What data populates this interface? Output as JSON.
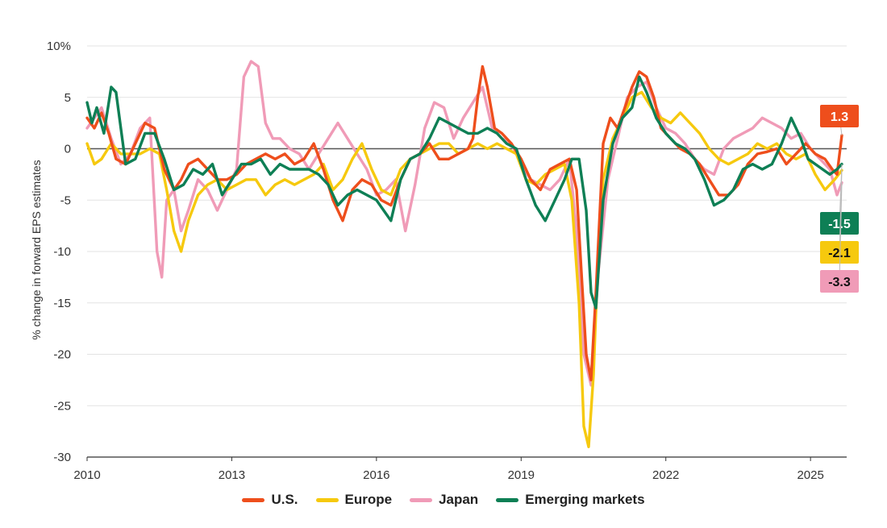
{
  "chart_data": {
    "type": "line",
    "title": "",
    "xlabel": "",
    "ylabel": "% change in forward EPS estimates",
    "xlim": [
      2010,
      2025.75
    ],
    "ylim": [
      -30,
      10
    ],
    "x_ticks": [
      2010,
      2013,
      2016,
      2019,
      2022,
      2025
    ],
    "x_tick_labels": [
      "2010",
      "2013",
      "2016",
      "2019",
      "2022",
      "2025"
    ],
    "y_ticks": [
      10,
      5,
      0,
      -5,
      -10,
      -15,
      -20,
      -25,
      -30
    ],
    "y_tick_labels": [
      "10%",
      "5",
      "0",
      "-5",
      "-10",
      "-15",
      "-20",
      "-25",
      "-30"
    ],
    "grid": "horizontal",
    "zero_line": true,
    "legend_position": "bottom",
    "series": [
      {
        "name": "U.S.",
        "color": "#ee4e1c",
        "end_label": "1.3",
        "x": [
          2010.0,
          2010.15,
          2010.3,
          2010.45,
          2010.6,
          2010.8,
          2011.0,
          2011.2,
          2011.4,
          2011.6,
          2011.8,
          2011.95,
          2012.1,
          2012.3,
          2012.5,
          2012.7,
          2012.9,
          2013.1,
          2013.3,
          2013.5,
          2013.7,
          2013.9,
          2014.1,
          2014.3,
          2014.5,
          2014.7,
          2014.9,
          2015.1,
          2015.3,
          2015.5,
          2015.7,
          2015.9,
          2016.1,
          2016.3,
          2016.5,
          2016.7,
          2016.9,
          2017.1,
          2017.3,
          2017.5,
          2017.7,
          2017.9,
          2018.0,
          2018.1,
          2018.2,
          2018.3,
          2018.45,
          2018.6,
          2018.8,
          2019.0,
          2019.2,
          2019.4,
          2019.6,
          2019.8,
          2020.0,
          2020.15,
          2020.25,
          2020.35,
          2020.45,
          2020.55,
          2020.7,
          2020.85,
          2021.0,
          2021.15,
          2021.3,
          2021.45,
          2021.6,
          2021.75,
          2021.9,
          2022.1,
          2022.3,
          2022.5,
          2022.7,
          2022.9,
          2023.1,
          2023.3,
          2023.5,
          2023.7,
          2023.9,
          2024.1,
          2024.3,
          2024.5,
          2024.7,
          2024.9,
          2025.1,
          2025.3,
          2025.45,
          2025.55,
          2025.65
        ],
        "y": [
          3.0,
          2.0,
          3.5,
          1.5,
          -1.0,
          -1.5,
          0.5,
          2.5,
          2.0,
          -2.0,
          -4.0,
          -3.0,
          -1.5,
          -1.0,
          -2.0,
          -3.0,
          -3.0,
          -2.5,
          -1.5,
          -1.0,
          -0.5,
          -1.0,
          -0.5,
          -1.5,
          -1.0,
          0.5,
          -2.0,
          -5.0,
          -7.0,
          -4.0,
          -3.0,
          -3.5,
          -5.0,
          -5.5,
          -3.0,
          -1.0,
          -0.5,
          0.5,
          -1.0,
          -1.0,
          -0.5,
          0.0,
          1.0,
          5.0,
          8.0,
          6.0,
          2.0,
          1.5,
          0.5,
          -1.0,
          -3.0,
          -4.0,
          -2.0,
          -1.5,
          -1.0,
          -4.0,
          -12.0,
          -20.0,
          -22.5,
          -14.0,
          0.5,
          3.0,
          2.0,
          4.0,
          6.0,
          7.5,
          7.0,
          5.0,
          2.0,
          1.0,
          0.0,
          -0.5,
          -1.5,
          -3.0,
          -4.5,
          -4.5,
          -3.5,
          -1.5,
          -0.5,
          -0.3,
          0.0,
          -1.5,
          -0.5,
          0.5,
          -0.5,
          -1.0,
          -2.0,
          -2.5,
          1.3
        ]
      },
      {
        "name": "Europe",
        "color": "#f6c90e",
        "end_label": "-2.1",
        "x": [
          2010.0,
          2010.15,
          2010.3,
          2010.5,
          2010.7,
          2010.9,
          2011.1,
          2011.3,
          2011.5,
          2011.65,
          2011.8,
          2011.95,
          2012.1,
          2012.3,
          2012.5,
          2012.7,
          2012.9,
          2013.1,
          2013.3,
          2013.5,
          2013.7,
          2013.9,
          2014.1,
          2014.3,
          2014.5,
          2014.7,
          2014.9,
          2015.1,
          2015.3,
          2015.5,
          2015.7,
          2015.9,
          2016.1,
          2016.3,
          2016.5,
          2016.7,
          2016.9,
          2017.1,
          2017.3,
          2017.5,
          2017.7,
          2017.9,
          2018.1,
          2018.3,
          2018.5,
          2018.7,
          2018.9,
          2019.1,
          2019.3,
          2019.5,
          2019.7,
          2019.9,
          2020.05,
          2020.2,
          2020.3,
          2020.4,
          2020.5,
          2020.6,
          2020.7,
          2020.9,
          2021.1,
          2021.3,
          2021.5,
          2021.7,
          2021.9,
          2022.1,
          2022.3,
          2022.5,
          2022.7,
          2022.9,
          2023.1,
          2023.3,
          2023.5,
          2023.7,
          2023.9,
          2024.1,
          2024.3,
          2024.5,
          2024.7,
          2024.9,
          2025.1,
          2025.3,
          2025.5,
          2025.65
        ],
        "y": [
          0.5,
          -1.5,
          -1.0,
          0.5,
          -0.5,
          -0.5,
          -0.5,
          0.0,
          -0.5,
          -4.0,
          -8.0,
          -10.0,
          -7.0,
          -4.5,
          -3.5,
          -3.0,
          -4.0,
          -3.5,
          -3.0,
          -3.0,
          -4.5,
          -3.5,
          -3.0,
          -3.5,
          -3.0,
          -2.5,
          -1.5,
          -4.0,
          -3.0,
          -1.0,
          0.5,
          -2.0,
          -4.0,
          -4.5,
          -2.0,
          -1.0,
          -0.5,
          0.0,
          0.5,
          0.5,
          -0.5,
          0.0,
          0.5,
          0.0,
          0.5,
          0.0,
          -0.5,
          -3.0,
          -3.5,
          -2.5,
          -2.0,
          -1.5,
          -5.0,
          -15.0,
          -27.0,
          -29.0,
          -22.0,
          -10.0,
          -3.0,
          1.0,
          3.0,
          5.0,
          5.5,
          4.0,
          3.0,
          2.5,
          3.5,
          2.5,
          1.5,
          0.0,
          -1.0,
          -1.5,
          -1.0,
          -0.5,
          0.5,
          0.0,
          0.5,
          -0.5,
          -1.0,
          -0.5,
          -2.5,
          -4.0,
          -3.0,
          -2.1
        ]
      },
      {
        "name": "Japan",
        "color": "#f09bb7",
        "end_label": "-3.3",
        "x": [
          2010.0,
          2010.15,
          2010.3,
          2010.5,
          2010.7,
          2010.9,
          2011.1,
          2011.3,
          2011.45,
          2011.55,
          2011.65,
          2011.8,
          2011.95,
          2012.1,
          2012.3,
          2012.5,
          2012.7,
          2012.9,
          2013.1,
          2013.25,
          2013.4,
          2013.55,
          2013.7,
          2013.85,
          2014.0,
          2014.2,
          2014.4,
          2014.6,
          2014.8,
          2015.0,
          2015.2,
          2015.4,
          2015.6,
          2015.8,
          2016.0,
          2016.2,
          2016.4,
          2016.6,
          2016.8,
          2017.0,
          2017.2,
          2017.4,
          2017.6,
          2017.8,
          2018.0,
          2018.2,
          2018.4,
          2018.6,
          2018.8,
          2019.0,
          2019.2,
          2019.4,
          2019.6,
          2019.8,
          2020.0,
          2020.15,
          2020.3,
          2020.45,
          2020.6,
          2020.8,
          2021.0,
          2021.2,
          2021.4,
          2021.6,
          2021.8,
          2022.0,
          2022.2,
          2022.4,
          2022.6,
          2022.8,
          2023.0,
          2023.2,
          2023.4,
          2023.6,
          2023.8,
          2024.0,
          2024.2,
          2024.4,
          2024.6,
          2024.8,
          2025.0,
          2025.2,
          2025.4,
          2025.55,
          2025.65
        ],
        "y": [
          2.0,
          3.0,
          4.0,
          1.0,
          -1.5,
          -0.5,
          2.0,
          3.0,
          -10.0,
          -12.5,
          -5.0,
          -4.0,
          -8.0,
          -6.0,
          -3.0,
          -4.0,
          -6.0,
          -4.0,
          -2.0,
          7.0,
          8.5,
          8.0,
          2.5,
          1.0,
          1.0,
          0.0,
          -0.5,
          -2.0,
          -0.5,
          1.0,
          2.5,
          1.0,
          -0.5,
          -2.0,
          -4.5,
          -4.0,
          -3.0,
          -8.0,
          -3.5,
          2.0,
          4.5,
          4.0,
          1.0,
          3.0,
          4.5,
          6.0,
          2.0,
          1.0,
          0.5,
          -1.5,
          -3.0,
          -3.5,
          -4.0,
          -3.0,
          -1.0,
          -8.0,
          -20.0,
          -23.0,
          -12.0,
          -3.0,
          1.0,
          5.0,
          6.0,
          6.5,
          4.0,
          2.0,
          1.5,
          0.5,
          -1.0,
          -2.0,
          -2.5,
          0.0,
          1.0,
          1.5,
          2.0,
          3.0,
          2.5,
          2.0,
          1.0,
          1.5,
          0.0,
          -1.0,
          -2.0,
          -4.5,
          -3.3
        ]
      },
      {
        "name": "Emerging markets",
        "color": "#0e7f55",
        "end_label": "-1.5",
        "x": [
          2010.0,
          2010.1,
          2010.2,
          2010.35,
          2010.5,
          2010.6,
          2010.8,
          2011.0,
          2011.2,
          2011.4,
          2011.6,
          2011.8,
          2012.0,
          2012.2,
          2012.4,
          2012.6,
          2012.8,
          2013.0,
          2013.2,
          2013.4,
          2013.6,
          2013.8,
          2014.0,
          2014.2,
          2014.4,
          2014.6,
          2014.8,
          2015.0,
          2015.2,
          2015.4,
          2015.6,
          2015.8,
          2016.0,
          2016.15,
          2016.3,
          2016.5,
          2016.7,
          2016.9,
          2017.1,
          2017.3,
          2017.5,
          2017.7,
          2017.9,
          2018.1,
          2018.3,
          2018.5,
          2018.7,
          2018.9,
          2019.1,
          2019.3,
          2019.5,
          2019.7,
          2019.9,
          2020.05,
          2020.2,
          2020.35,
          2020.45,
          2020.55,
          2020.7,
          2020.9,
          2021.1,
          2021.3,
          2021.45,
          2021.6,
          2021.8,
          2022.0,
          2022.2,
          2022.4,
          2022.6,
          2022.8,
          2023.0,
          2023.2,
          2023.4,
          2023.6,
          2023.8,
          2024.0,
          2024.2,
          2024.4,
          2024.6,
          2024.8,
          2024.95,
          2025.1,
          2025.25,
          2025.4,
          2025.55,
          2025.65
        ],
        "y": [
          4.5,
          2.5,
          4.0,
          1.5,
          6.0,
          5.5,
          -1.5,
          -1.0,
          1.5,
          1.5,
          -1.0,
          -4.0,
          -3.5,
          -2.0,
          -2.5,
          -1.5,
          -4.5,
          -3.0,
          -1.5,
          -1.5,
          -1.0,
          -2.5,
          -1.5,
          -2.0,
          -2.0,
          -2.0,
          -2.5,
          -3.5,
          -5.5,
          -4.5,
          -4.0,
          -4.5,
          -5.0,
          -6.0,
          -7.0,
          -3.0,
          -1.0,
          -0.5,
          1.0,
          3.0,
          2.5,
          2.0,
          1.5,
          1.5,
          2.0,
          1.5,
          0.5,
          0.0,
          -3.0,
          -5.5,
          -7.0,
          -5.0,
          -3.0,
          -1.0,
          -1.0,
          -6.0,
          -14.0,
          -15.5,
          -5.0,
          0.5,
          3.0,
          4.0,
          7.0,
          5.5,
          3.0,
          1.5,
          0.5,
          0.0,
          -1.0,
          -3.0,
          -5.5,
          -5.0,
          -4.0,
          -2.0,
          -1.5,
          -2.0,
          -1.5,
          0.5,
          3.0,
          1.0,
          -1.0,
          -1.5,
          -2.0,
          -2.5,
          -2.0,
          -1.5
        ]
      }
    ]
  }
}
